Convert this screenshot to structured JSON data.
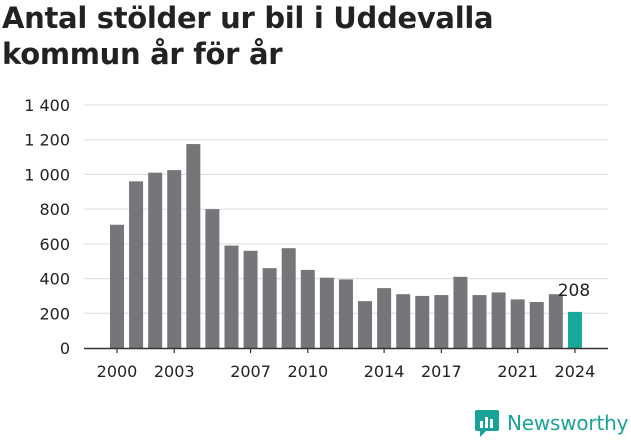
{
  "title": "Antal stölder ur bil i Uddevalla kommun år för år",
  "brand": {
    "name": "Newsworthy"
  },
  "colors": {
    "bar": "#76757a",
    "highlight": "#18a89a",
    "grid": "#dcdcdc",
    "text": "#222222",
    "brand": "#1aa398"
  },
  "chart_data": {
    "type": "bar",
    "title": "Antal stölder ur bil i Uddevalla kommun år för år",
    "xlabel": "",
    "ylabel": "",
    "x": [
      2000,
      2001,
      2002,
      2003,
      2004,
      2005,
      2006,
      2007,
      2008,
      2009,
      2010,
      2011,
      2012,
      2013,
      2014,
      2015,
      2016,
      2017,
      2018,
      2019,
      2020,
      2021,
      2022,
      2023,
      2024
    ],
    "values": [
      710,
      960,
      1010,
      1025,
      1175,
      800,
      590,
      560,
      460,
      575,
      450,
      405,
      395,
      270,
      345,
      310,
      300,
      305,
      410,
      305,
      320,
      280,
      265,
      310,
      208
    ],
    "highlight_index": 24,
    "data_labels": [
      {
        "index": 24,
        "text": "208"
      }
    ],
    "x_ticks": [
      "2000",
      "2003",
      "2007",
      "2010",
      "2014",
      "2017",
      "2021",
      "2024"
    ],
    "y_ticks": [
      "0",
      "200",
      "400",
      "600",
      "800",
      "1 000",
      "1 200",
      "1 400"
    ],
    "ylim": [
      0,
      1400
    ],
    "grid": true,
    "legend": "none"
  }
}
